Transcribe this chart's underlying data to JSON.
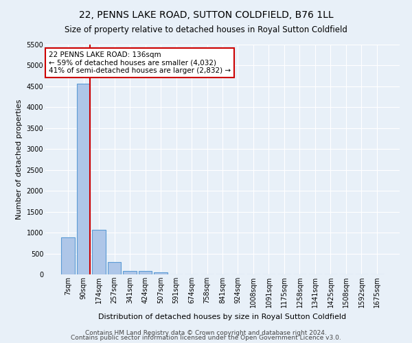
{
  "title": "22, PENNS LAKE ROAD, SUTTON COLDFIELD, B76 1LL",
  "subtitle": "Size of property relative to detached houses in Royal Sutton Coldfield",
  "xlabel": "Distribution of detached houses by size in Royal Sutton Coldfield",
  "ylabel": "Number of detached properties",
  "footnote1": "Contains HM Land Registry data © Crown copyright and database right 2024.",
  "footnote2": "Contains public sector information licensed under the Open Government Licence v3.0.",
  "bar_labels": [
    "7sqm",
    "90sqm",
    "174sqm",
    "257sqm",
    "341sqm",
    "424sqm",
    "507sqm",
    "591sqm",
    "674sqm",
    "758sqm",
    "841sqm",
    "924sqm",
    "1008sqm",
    "1091sqm",
    "1175sqm",
    "1258sqm",
    "1341sqm",
    "1425sqm",
    "1508sqm",
    "1592sqm",
    "1675sqm"
  ],
  "bar_values": [
    880,
    4560,
    1060,
    290,
    90,
    80,
    50,
    0,
    0,
    0,
    0,
    0,
    0,
    0,
    0,
    0,
    0,
    0,
    0,
    0,
    0
  ],
  "bar_color": "#aec6e8",
  "bar_edge_color": "#5b9bd5",
  "vline_x_index": 1,
  "vline_color": "#cc0000",
  "annotation_text": "22 PENNS LAKE ROAD: 136sqm\n← 59% of detached houses are smaller (4,032)\n41% of semi-detached houses are larger (2,832) →",
  "annotation_box_color": "#ffffff",
  "annotation_box_edge": "#cc0000",
  "ylim": [
    0,
    5500
  ],
  "yticks": [
    0,
    500,
    1000,
    1500,
    2000,
    2500,
    3000,
    3500,
    4000,
    4500,
    5000,
    5500
  ],
  "bg_color": "#e8f0f8",
  "plot_bg_color": "#e8f0f8",
  "grid_color": "#ffffff",
  "title_fontsize": 10,
  "subtitle_fontsize": 8.5,
  "tick_fontsize": 7,
  "ylabel_fontsize": 8,
  "xlabel_fontsize": 8,
  "annotation_fontsize": 7.5
}
